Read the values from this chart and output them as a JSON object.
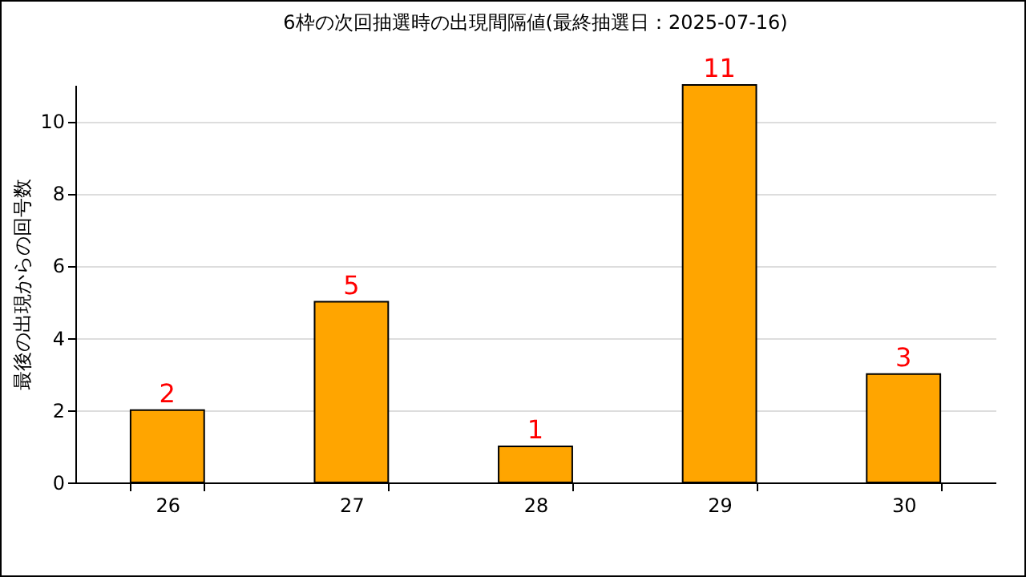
{
  "chart_data": {
    "type": "bar",
    "title": "6枠の次回抽選時の出現間隔値(最終抽選日：2025-07-16)",
    "ylabel": "最後の出現からの回号数",
    "categories": [
      "26",
      "27",
      "28",
      "29",
      "30"
    ],
    "values": [
      2,
      5,
      1,
      11,
      3
    ],
    "color": "#ffa500",
    "ylim": [
      0,
      11
    ],
    "yticks": [
      0,
      2,
      4,
      6,
      8,
      10
    ],
    "grid": "y",
    "data_labels": true
  }
}
